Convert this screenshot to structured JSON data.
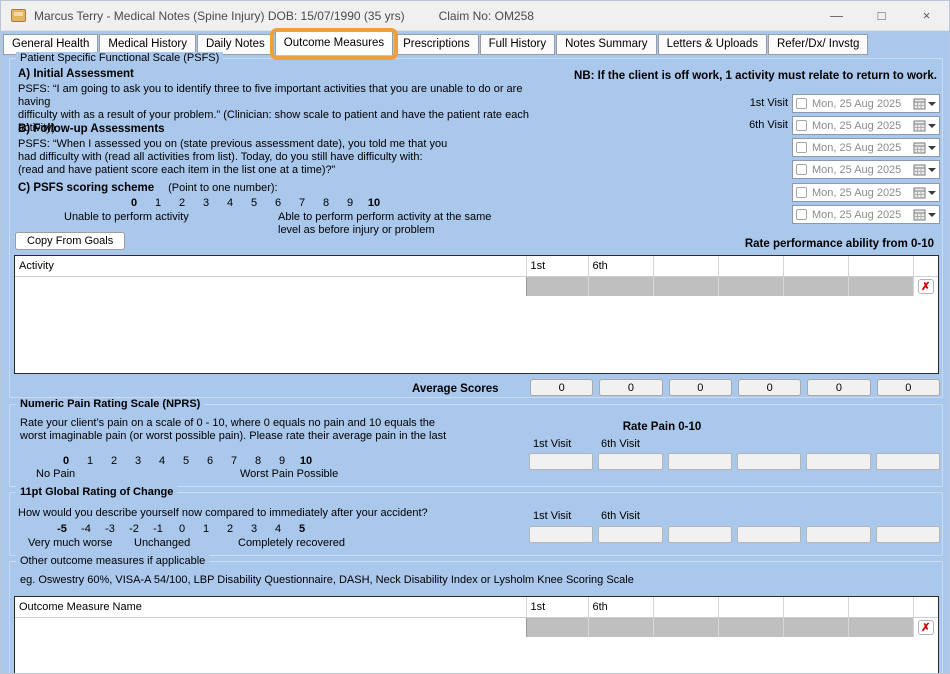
{
  "colors": {
    "content_bg": "#aac7ec",
    "highlight_orange": "#efa03c",
    "row_gray": "#bfbfbf",
    "delete_red": "#d40000"
  },
  "window": {
    "title": "Marcus Terry - Medical Notes (Spine Injury) DOB: 15/07/1990 (35 yrs)",
    "claim_no": "Claim No: OM258",
    "minimize": "—",
    "maximize": "□",
    "close": "×"
  },
  "tabs": {
    "items": [
      {
        "label": "General Health"
      },
      {
        "label": "Medical History"
      },
      {
        "label": "Daily Notes"
      },
      {
        "label": "Outcome Measures"
      },
      {
        "label": "Prescriptions"
      },
      {
        "label": "Full History"
      },
      {
        "label": "Notes Summary"
      },
      {
        "label": "Letters & Uploads"
      },
      {
        "label": "Refer/Dx/ Invstg"
      }
    ],
    "selected": "Outcome Measures"
  },
  "psfs": {
    "legend": "Patient Specific Functional Scale (PSFS)",
    "nb_note": "NB: If the client is off work, 1 activity must relate to return to work.",
    "section_a_title": "A) Initial Assessment",
    "section_a_text": "PSFS: “I am going to ask you to identify three to five important activities that you are unable to do or are having\ndifficulty with as a result of your problem.” (Clinician: show scale to patient and have the patient rate each activity)",
    "section_b_title": "B) Follow-up Assessments",
    "section_b_text": "PSFS: “When I assessed you on (state previous assessment date), you told me that you\nhad difficulty with (read all activities from list).  Today, do you still have difficulty with:\n(read and have patient score each item in the list one at a time)?”",
    "section_c_title": "C) PSFS scoring scheme",
    "section_c_hint": "(Point to one number):",
    "scale_numbers": [
      "0",
      "1",
      "2",
      "3",
      "4",
      "5",
      "6",
      "7",
      "8",
      "9",
      "10"
    ],
    "scale_min_label": "Unable to perform activity",
    "scale_max_label": "Able to perform perform activity at the same\nlevel as before injury or problem",
    "copy_from_goals": "Copy From Goals",
    "visit_rows": [
      {
        "label": "1st Visit",
        "date": "Mon, 25 Aug 2025"
      },
      {
        "label": "6th Visit",
        "date": "Mon, 25 Aug 2025"
      },
      {
        "label": "",
        "date": "Mon, 25 Aug 2025"
      },
      {
        "label": "",
        "date": "Mon, 25 Aug 2025"
      },
      {
        "label": "",
        "date": "Mon, 25 Aug 2025"
      },
      {
        "label": "",
        "date": "Mon, 25 Aug 2025"
      }
    ],
    "rate_performance": "Rate performance ability from  0-10",
    "activity_table": {
      "headers": [
        "Activity",
        "1st",
        "6th",
        "",
        "",
        "",
        ""
      ],
      "delete_glyph": "✗"
    },
    "average_scores_label": "Average Scores",
    "average_scores": [
      "0",
      "0",
      "0",
      "0",
      "0",
      "0"
    ]
  },
  "nprs": {
    "legend": "Numeric Pain Rating Scale (NPRS)",
    "description": "Rate your client’s pain on a scale of 0 - 10, where 0 equals no pain and 10 equals the\nworst imaginable pain (or worst possible pain). Please rate their average pain in the last",
    "scale_numbers": [
      "0",
      "1",
      "2",
      "3",
      "4",
      "5",
      "6",
      "7",
      "8",
      "9",
      "10"
    ],
    "scale_min_label": "No Pain",
    "scale_max_label": "Worst Pain Possible",
    "rate_title": "Rate Pain 0-10",
    "visit_1_label": "1st Visit",
    "visit_6_label": "6th Visit",
    "pain_inputs": [
      "",
      "",
      "",
      "",
      "",
      ""
    ]
  },
  "groc": {
    "legend": "11pt Global Rating of Change",
    "question": "How would you describe yourself now compared to immediately after your accident?",
    "scale_numbers": [
      "-5",
      "-4",
      "-3",
      "-2",
      "-1",
      "0",
      "1",
      "2",
      "3",
      "4",
      "5"
    ],
    "label_worse": "Very much worse",
    "label_unchanged": "Unchanged",
    "label_recovered": "Completely recovered",
    "visit_1_label": "1st Visit",
    "visit_6_label": "6th Visit",
    "change_inputs": [
      "",
      "",
      "",
      "",
      "",
      ""
    ]
  },
  "other": {
    "legend": "Other outcome measures if applicable",
    "examples": "eg. Oswestry 60%, VISA-A 54/100, LBP Disability Questionnaire, DASH, Neck Disability Index or Lysholm Knee Scoring Scale",
    "table": {
      "headers": [
        "Outcome Measure Name",
        "1st",
        "6th",
        "",
        "",
        "",
        ""
      ],
      "delete_glyph": "✗"
    }
  }
}
